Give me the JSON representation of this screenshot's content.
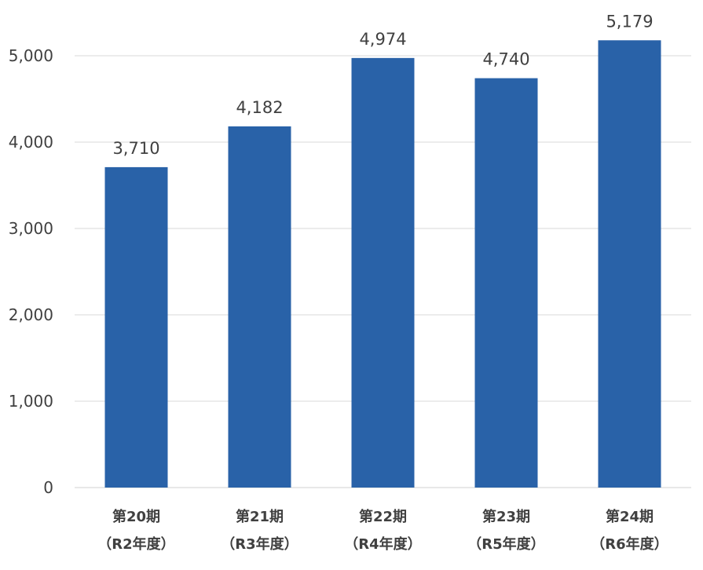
{
  "chart_data": {
    "type": "bar",
    "categories": [
      [
        "第20期",
        "（R2年度）"
      ],
      [
        "第21期",
        "（R3年度）"
      ],
      [
        "第22期",
        "（R4年度）"
      ],
      [
        "第23期",
        "（R5年度）"
      ],
      [
        "第24期",
        "（R6年度）"
      ]
    ],
    "values": [
      3710,
      4182,
      4974,
      4740,
      5179
    ],
    "data_labels": [
      "3,710",
      "4,182",
      "4,974",
      "4,740",
      "5,179"
    ],
    "y_ticks": [
      0,
      1000,
      2000,
      3000,
      4000,
      5000
    ],
    "y_tick_labels": [
      "0",
      "1,000",
      "2,000",
      "3,000",
      "4,000",
      "5,000"
    ],
    "ylim": [
      0,
      5000
    ],
    "grid": true,
    "legend": "none",
    "bar_color": "#2962a8",
    "title": "",
    "xlabel": "",
    "ylabel": ""
  }
}
